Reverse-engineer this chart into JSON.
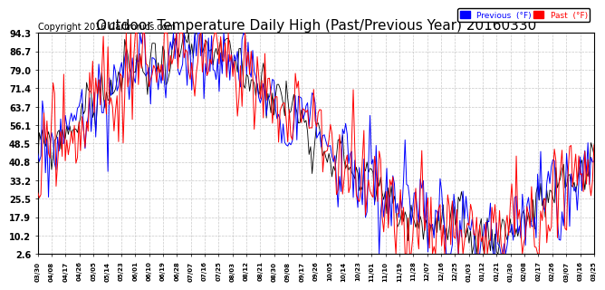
{
  "title": "Outdoor Temperature Daily High (Past/Previous Year) 20160330",
  "copyright": "Copyright 2016 Cartronics.com",
  "ylabel_ticks": [
    2.6,
    10.2,
    17.9,
    25.5,
    33.2,
    40.8,
    48.5,
    56.1,
    63.7,
    71.4,
    79.0,
    86.7,
    94.3
  ],
  "ylim": [
    2.6,
    94.3
  ],
  "legend_labels": [
    "Previous  (°F)",
    "Past  (°F)"
  ],
  "background_color": "#ffffff",
  "grid_color": "#bbbbbb",
  "title_fontsize": 11,
  "copyright_fontsize": 7,
  "xtick_labels": [
    "03/30",
    "04/08",
    "04/17",
    "04/26",
    "05/05",
    "05/14",
    "05/23",
    "06/01",
    "06/10",
    "06/19",
    "06/28",
    "07/07",
    "07/16",
    "07/25",
    "08/03",
    "08/12",
    "08/21",
    "08/30",
    "09/08",
    "09/17",
    "09/26",
    "10/05",
    "10/14",
    "10/23",
    "11/01",
    "11/10",
    "11/19",
    "11/28",
    "12/07",
    "12/16",
    "12/25",
    "01/03",
    "01/12",
    "01/21",
    "01/30",
    "02/08",
    "02/17",
    "02/26",
    "03/07",
    "03/16",
    "03/25"
  ]
}
